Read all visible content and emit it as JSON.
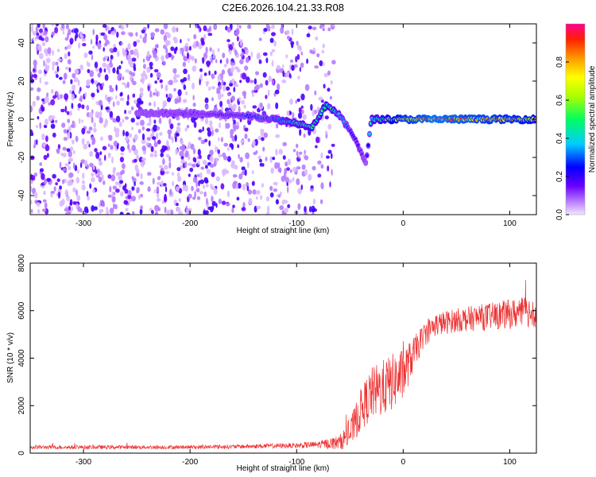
{
  "figure_title": "C2E6.2026.104.21.33.R08",
  "chart_data": [
    {
      "type": "heatmap",
      "name": "spectrogram",
      "xlabel": "Height of straight line (km)",
      "ylabel": "Frequency (Hz)",
      "xlim": [
        -350,
        125
      ],
      "ylim": [
        -50,
        50
      ],
      "xticks": [
        -300,
        -200,
        -100,
        0,
        100
      ],
      "xtick_labels": [
        "-300",
        "-200",
        "-100",
        "0",
        "100"
      ],
      "yticks": [
        -40,
        -20,
        0,
        20,
        40
      ],
      "ytick_labels": [
        "-40",
        "-20",
        "0",
        "20",
        "40"
      ],
      "colorbar": {
        "label": "Normalized spectral amplitude",
        "range": [
          0,
          1
        ],
        "ticks": [
          0,
          0.2,
          0.4,
          0.6,
          0.8
        ],
        "tick_labels": [
          "0.0",
          "0.2",
          "0.4",
          "0.6",
          "0.8"
        ]
      },
      "noise_region_x": [
        -350,
        -90
      ],
      "signal_track": [
        {
          "x": -250,
          "y": 3,
          "amp": 0.1
        },
        {
          "x": -200,
          "y": 3,
          "amp": 0.15
        },
        {
          "x": -150,
          "y": 2,
          "amp": 0.25
        },
        {
          "x": -120,
          "y": 0,
          "amp": 0.35
        },
        {
          "x": -100,
          "y": -2,
          "amp": 0.45
        },
        {
          "x": -85,
          "y": -4,
          "amp": 0.5
        },
        {
          "x": -72,
          "y": 8,
          "amp": 0.55
        },
        {
          "x": -60,
          "y": 2,
          "amp": 0.4
        },
        {
          "x": -45,
          "y": -10,
          "amp": 0.2
        },
        {
          "x": -35,
          "y": -24,
          "amp": 0.1
        },
        {
          "x": -30,
          "y": 0,
          "amp": 0.45
        },
        {
          "x": 0,
          "y": 0,
          "amp": 0.8
        },
        {
          "x": 30,
          "y": 0,
          "amp": 0.9
        },
        {
          "x": 60,
          "y": 0,
          "amp": 0.85
        },
        {
          "x": 90,
          "y": 0,
          "amp": 0.8
        },
        {
          "x": 120,
          "y": 0,
          "amp": 0.75
        }
      ]
    },
    {
      "type": "line",
      "name": "snr",
      "xlabel": "Height of straight line (km)",
      "ylabel": "SNR (10 * v/v)",
      "xlim": [
        -350,
        125
      ],
      "ylim": [
        0,
        8000
      ],
      "xticks": [
        -300,
        -200,
        -100,
        0,
        100
      ],
      "xtick_labels": [
        "-300",
        "-200",
        "-100",
        "0",
        "100"
      ],
      "yticks": [
        0,
        2000,
        4000,
        6000,
        8000
      ],
      "ytick_labels": [
        "0",
        "2000",
        "4000",
        "6000",
        "8000"
      ],
      "color": "#ee3030",
      "series": [
        {
          "name": "SNR",
          "x": [
            -350,
            -300,
            -250,
            -200,
            -150,
            -100,
            -80,
            -60,
            -50,
            -40,
            -30,
            -20,
            -10,
            0,
            10,
            20,
            30,
            50,
            70,
            90,
            110,
            125
          ],
          "y": [
            250,
            250,
            250,
            250,
            280,
            320,
            360,
            450,
            800,
            1800,
            2500,
            2700,
            3000,
            3300,
            4200,
            5000,
            5400,
            5600,
            5700,
            5800,
            5900,
            6000
          ],
          "spread": [
            80,
            80,
            80,
            80,
            90,
            110,
            150,
            300,
            600,
            900,
            1100,
            1200,
            1200,
            1100,
            700,
            500,
            500,
            500,
            550,
            600,
            650,
            700
          ]
        }
      ]
    }
  ]
}
